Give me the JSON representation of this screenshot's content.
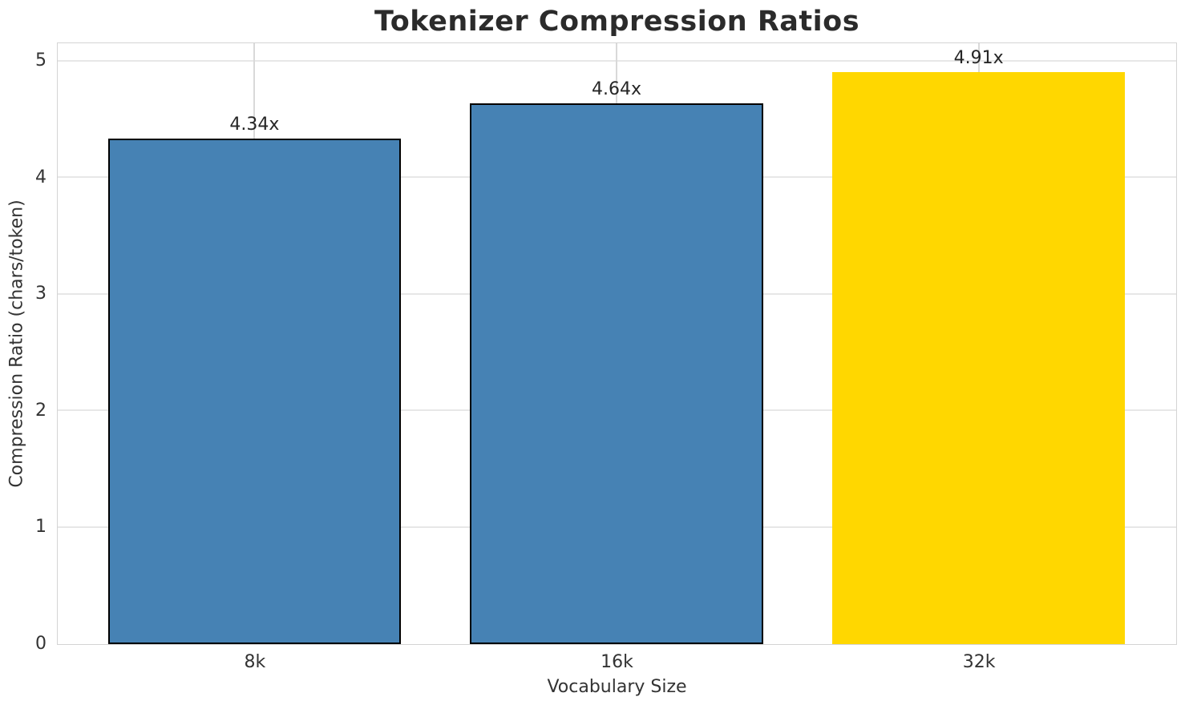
{
  "chart_data": {
    "type": "bar",
    "title": "Tokenizer Compression Ratios",
    "xlabel": "Vocabulary Size",
    "ylabel": "Compression Ratio (chars/token)",
    "categories": [
      "8k",
      "16k",
      "32k"
    ],
    "values": [
      4.34,
      4.64,
      4.91
    ],
    "bar_labels": [
      "4.34x",
      "4.64x",
      "4.91x"
    ],
    "y_ticks": [
      0,
      1,
      2,
      3,
      4,
      5
    ],
    "ylim": [
      0,
      5.15
    ],
    "grid": true,
    "legend_position": "none",
    "bar_colors": [
      "#4682B4",
      "#4682B4",
      "#FFD700"
    ],
    "bar_edge_colors": [
      "#000000",
      "#000000",
      "none"
    ],
    "highlight_index": 2
  },
  "colors": {
    "steel_blue": "#4682B4",
    "gold": "#FFD700",
    "grid": "#e0e0e0",
    "spine": "#d4d4d4",
    "text": "#262626"
  }
}
